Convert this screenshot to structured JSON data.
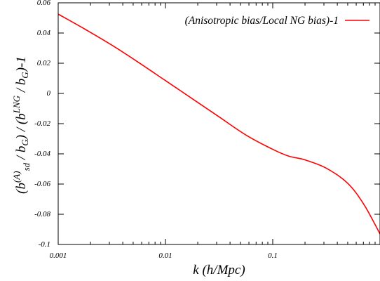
{
  "chart_data": {
    "type": "line",
    "xscale": "log",
    "xlim": [
      0.001,
      1
    ],
    "ylim": [
      -0.1,
      0.06
    ],
    "xlabel": "k (h/Mpc)",
    "ylabel": {
      "parts": [
        "(b",
        "(A)",
        "sd",
        " / b",
        "G",
        ") / (b",
        "LNG",
        " / b",
        "G",
        ")-1"
      ]
    },
    "xticks": [
      {
        "value": 0.001,
        "label": "0.001"
      },
      {
        "value": 0.01,
        "label": "0.01"
      },
      {
        "value": 0.1,
        "label": "0.1"
      }
    ],
    "yticks": [
      {
        "value": 0.06,
        "label": "0.06"
      },
      {
        "value": 0.04,
        "label": "0.04"
      },
      {
        "value": 0.02,
        "label": "0.02"
      },
      {
        "value": 0,
        "label": "0"
      },
      {
        "value": -0.02,
        "label": "-0.02"
      },
      {
        "value": -0.04,
        "label": "-0.04"
      },
      {
        "value": -0.06,
        "label": "-0.06"
      },
      {
        "value": -0.08,
        "label": "-0.08"
      },
      {
        "value": -0.1,
        "label": "-0.1"
      }
    ],
    "grid": false,
    "legend_position": "top-right",
    "series": [
      {
        "name": "(Anisotropic bias/Local NG bias)-1",
        "color": "#ff0000",
        "x": [
          0.001,
          0.00178,
          0.00316,
          0.00562,
          0.01,
          0.0178,
          0.0316,
          0.0562,
          0.1,
          0.141,
          0.2,
          0.316,
          0.5,
          0.708,
          1.0
        ],
        "y": [
          0.0525,
          0.0425,
          0.032,
          0.0205,
          0.0085,
          -0.0035,
          -0.0155,
          -0.0275,
          -0.037,
          -0.0415,
          -0.044,
          -0.0495,
          -0.0595,
          -0.0735,
          -0.093
        ]
      }
    ]
  }
}
